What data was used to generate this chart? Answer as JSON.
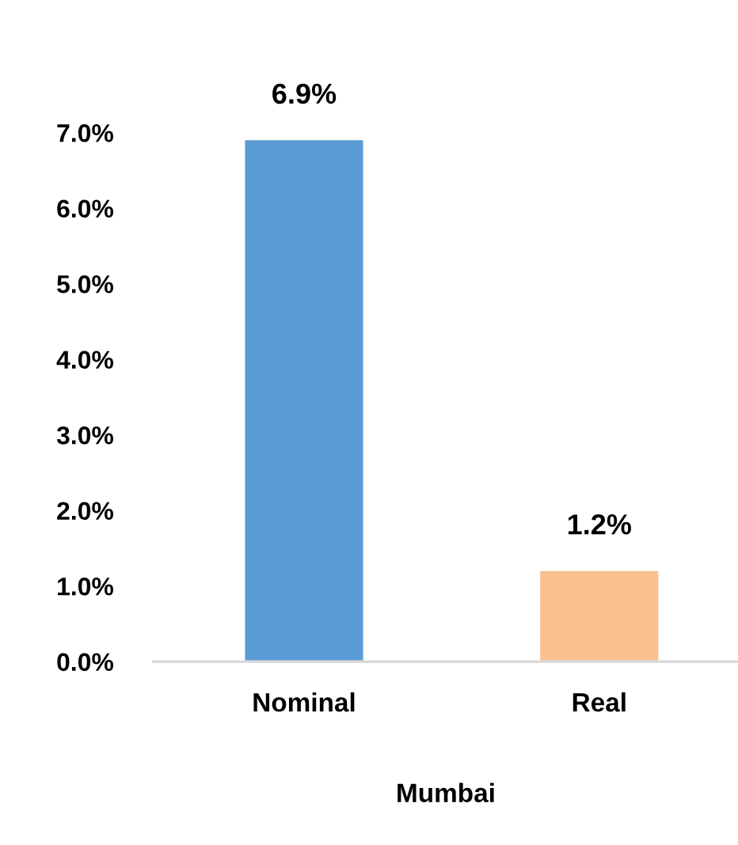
{
  "chart_data": {
    "type": "bar",
    "xlabel": "Mumbai",
    "categories": [
      "Nominal",
      "Real"
    ],
    "values": [
      6.9,
      1.2
    ],
    "colors": [
      "#5b9bd5",
      "#fac090"
    ],
    "value_labels": [
      "6.9%",
      "1.2%"
    ],
    "ylim": [
      0,
      7.0
    ],
    "yticks": [
      {
        "value": 0,
        "label": "0.0%"
      },
      {
        "value": 1,
        "label": "1.0%"
      },
      {
        "value": 2,
        "label": "2.0%"
      },
      {
        "value": 3,
        "label": "3.0%"
      },
      {
        "value": 4,
        "label": "4.0%"
      },
      {
        "value": 5,
        "label": "5.0%"
      },
      {
        "value": 6,
        "label": "6.0%"
      },
      {
        "value": 7,
        "label": "7.0%"
      }
    ],
    "grid": false,
    "legend": false
  }
}
